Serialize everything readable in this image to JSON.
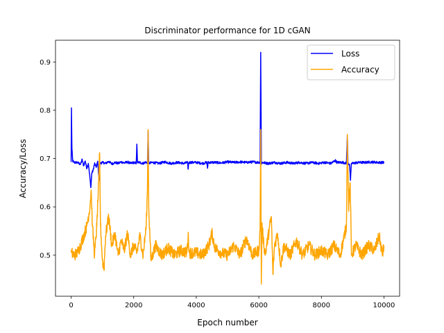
{
  "chart_data": {
    "type": "line",
    "title": "Discriminator performance for 1D cGAN",
    "xlabel": "Epoch number",
    "ylabel": "Accuracy/Loss",
    "xlim": [
      -500,
      10500
    ],
    "ylim": [
      0.415,
      0.945
    ],
    "xticks": [
      0,
      2000,
      4000,
      6000,
      8000,
      10000
    ],
    "xtick_labels": [
      "0",
      "2000",
      "4000",
      "6000",
      "8000",
      "10000"
    ],
    "yticks": [
      0.5,
      0.6,
      0.7,
      0.8,
      0.9
    ],
    "ytick_labels": [
      "0.5",
      "0.6",
      "0.7",
      "0.8",
      "0.9"
    ],
    "grid": false,
    "legend": {
      "placement": "top-right"
    },
    "series": [
      {
        "name": "Loss",
        "color": "#0000ff",
        "baseline": 0.693,
        "points": [
          [
            0,
            0.693
          ],
          [
            10,
            0.805
          ],
          [
            25,
            0.72
          ],
          [
            50,
            0.695
          ],
          [
            100,
            0.692
          ],
          [
            200,
            0.692
          ],
          [
            300,
            0.688
          ],
          [
            350,
            0.698
          ],
          [
            400,
            0.685
          ],
          [
            450,
            0.695
          ],
          [
            500,
            0.68
          ],
          [
            550,
            0.69
          ],
          [
            600,
            0.66
          ],
          [
            630,
            0.64
          ],
          [
            660,
            0.67
          ],
          [
            700,
            0.675
          ],
          [
            750,
            0.69
          ],
          [
            800,
            0.682
          ],
          [
            850,
            0.694
          ],
          [
            880,
            0.665
          ],
          [
            900,
            0.655
          ],
          [
            920,
            0.69
          ],
          [
            1000,
            0.692
          ],
          [
            1100,
            0.69
          ],
          [
            1200,
            0.694
          ],
          [
            1300,
            0.689
          ],
          [
            1400,
            0.692
          ],
          [
            1500,
            0.69
          ],
          [
            1600,
            0.693
          ],
          [
            1700,
            0.691
          ],
          [
            1800,
            0.693
          ],
          [
            1900,
            0.69
          ],
          [
            2000,
            0.692
          ],
          [
            2080,
            0.69
          ],
          [
            2100,
            0.73
          ],
          [
            2120,
            0.692
          ],
          [
            2200,
            0.692
          ],
          [
            2300,
            0.69
          ],
          [
            2400,
            0.693
          ],
          [
            2440,
            0.69
          ],
          [
            2460,
            0.757
          ],
          [
            2480,
            0.69
          ],
          [
            2600,
            0.692
          ],
          [
            2800,
            0.69
          ],
          [
            3000,
            0.693
          ],
          [
            3200,
            0.69
          ],
          [
            3400,
            0.692
          ],
          [
            3600,
            0.69
          ],
          [
            3720,
            0.692
          ],
          [
            3740,
            0.678
          ],
          [
            3760,
            0.692
          ],
          [
            4000,
            0.692
          ],
          [
            4200,
            0.69
          ],
          [
            4340,
            0.692
          ],
          [
            4360,
            0.68
          ],
          [
            4380,
            0.692
          ],
          [
            4600,
            0.692
          ],
          [
            4800,
            0.691
          ],
          [
            5000,
            0.693
          ],
          [
            5200,
            0.692
          ],
          [
            5400,
            0.693
          ],
          [
            5600,
            0.692
          ],
          [
            5800,
            0.693
          ],
          [
            6000,
            0.692
          ],
          [
            6040,
            0.692
          ],
          [
            6060,
            0.92
          ],
          [
            6075,
            0.76
          ],
          [
            6080,
            0.688
          ],
          [
            6100,
            0.692
          ],
          [
            6300,
            0.69
          ],
          [
            6500,
            0.692
          ],
          [
            6700,
            0.69
          ],
          [
            6900,
            0.692
          ],
          [
            7100,
            0.69
          ],
          [
            7300,
            0.692
          ],
          [
            7500,
            0.69
          ],
          [
            7700,
            0.692
          ],
          [
            7900,
            0.69
          ],
          [
            8100,
            0.692
          ],
          [
            8300,
            0.69
          ],
          [
            8450,
            0.696
          ],
          [
            8500,
            0.692
          ],
          [
            8700,
            0.692
          ],
          [
            8800,
            0.69
          ],
          [
            8830,
            0.748
          ],
          [
            8850,
            0.69
          ],
          [
            8900,
            0.688
          ],
          [
            8930,
            0.655
          ],
          [
            8960,
            0.69
          ],
          [
            9200,
            0.692
          ],
          [
            9400,
            0.692
          ],
          [
            9600,
            0.693
          ],
          [
            9800,
            0.692
          ],
          [
            10000,
            0.692
          ]
        ]
      },
      {
        "name": "Accuracy",
        "color": "#ffa500",
        "baseline": 0.505,
        "points": [
          [
            0,
            0.505
          ],
          [
            100,
            0.5
          ],
          [
            200,
            0.505
          ],
          [
            300,
            0.52
          ],
          [
            400,
            0.54
          ],
          [
            500,
            0.56
          ],
          [
            600,
            0.6
          ],
          [
            640,
            0.635
          ],
          [
            680,
            0.56
          ],
          [
            750,
            0.5
          ],
          [
            820,
            0.56
          ],
          [
            880,
            0.65
          ],
          [
            910,
            0.712
          ],
          [
            940,
            0.56
          ],
          [
            1000,
            0.49
          ],
          [
            1050,
            0.47
          ],
          [
            1100,
            0.54
          ],
          [
            1200,
            0.58
          ],
          [
            1300,
            0.52
          ],
          [
            1400,
            0.545
          ],
          [
            1500,
            0.5
          ],
          [
            1600,
            0.53
          ],
          [
            1700,
            0.51
          ],
          [
            1800,
            0.545
          ],
          [
            1900,
            0.5
          ],
          [
            2000,
            0.52
          ],
          [
            2100,
            0.505
          ],
          [
            2200,
            0.54
          ],
          [
            2300,
            0.5
          ],
          [
            2400,
            0.56
          ],
          [
            2440,
            0.64
          ],
          [
            2460,
            0.76
          ],
          [
            2480,
            0.6
          ],
          [
            2550,
            0.49
          ],
          [
            2700,
            0.52
          ],
          [
            2900,
            0.5
          ],
          [
            3100,
            0.515
          ],
          [
            3300,
            0.5
          ],
          [
            3500,
            0.51
          ],
          [
            3700,
            0.505
          ],
          [
            3740,
            0.54
          ],
          [
            3780,
            0.505
          ],
          [
            4000,
            0.505
          ],
          [
            4200,
            0.5
          ],
          [
            4400,
            0.52
          ],
          [
            4500,
            0.545
          ],
          [
            4600,
            0.515
          ],
          [
            4800,
            0.505
          ],
          [
            5000,
            0.5
          ],
          [
            5200,
            0.52
          ],
          [
            5400,
            0.5
          ],
          [
            5600,
            0.535
          ],
          [
            5800,
            0.5
          ],
          [
            6000,
            0.51
          ],
          [
            6040,
            0.55
          ],
          [
            6060,
            0.76
          ],
          [
            6080,
            0.44
          ],
          [
            6100,
            0.56
          ],
          [
            6200,
            0.5
          ],
          [
            6300,
            0.54
          ],
          [
            6400,
            0.58
          ],
          [
            6450,
            0.46
          ],
          [
            6500,
            0.52
          ],
          [
            6600,
            0.545
          ],
          [
            6700,
            0.48
          ],
          [
            6800,
            0.52
          ],
          [
            7000,
            0.5
          ],
          [
            7200,
            0.53
          ],
          [
            7400,
            0.5
          ],
          [
            7600,
            0.52
          ],
          [
            7800,
            0.5
          ],
          [
            8000,
            0.51
          ],
          [
            8200,
            0.5
          ],
          [
            8400,
            0.52
          ],
          [
            8600,
            0.5
          ],
          [
            8700,
            0.53
          ],
          [
            8800,
            0.56
          ],
          [
            8830,
            0.75
          ],
          [
            8870,
            0.6
          ],
          [
            8920,
            0.65
          ],
          [
            8960,
            0.5
          ],
          [
            9100,
            0.52
          ],
          [
            9300,
            0.5
          ],
          [
            9500,
            0.52
          ],
          [
            9700,
            0.51
          ],
          [
            9850,
            0.54
          ],
          [
            9950,
            0.5
          ],
          [
            10000,
            0.52
          ]
        ]
      }
    ]
  }
}
